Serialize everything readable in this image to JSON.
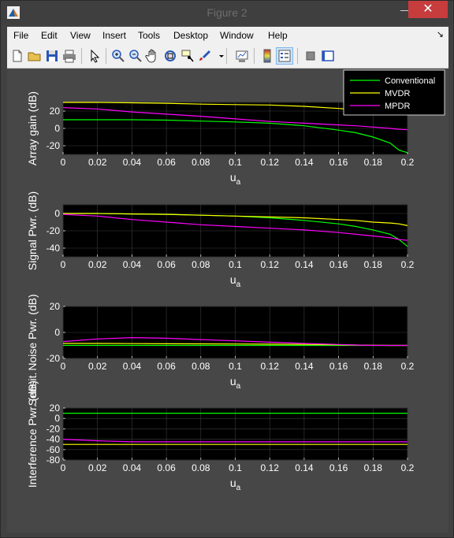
{
  "window": {
    "title": "Figure 2",
    "minimize_glyph": "—",
    "close_glyph": "✕"
  },
  "menu": [
    "File",
    "Edit",
    "View",
    "Insert",
    "Tools",
    "Desktop",
    "Window",
    "Help"
  ],
  "toolbar_icons": [
    "new-figure-icon",
    "open-file-icon",
    "save-icon",
    "print-icon",
    "pointer-icon",
    "zoom-in-icon",
    "zoom-out-icon",
    "pan-hand-icon",
    "rotate-3d-icon",
    "data-cursor-icon",
    "brush-icon",
    "link-plot-icon",
    "colorbar-icon",
    "legend-icon",
    "hide-plot-tools-icon",
    "show-plot-tools-icon"
  ],
  "colors": {
    "conventional": "#00ff00",
    "mvdr": "#ffff00",
    "mpdr": "#ff00ff",
    "axes_bg": "#000000",
    "figure_bg": "#474747",
    "text": "#ffffff"
  },
  "legend": {
    "entries": [
      "Conventional",
      "MVDR",
      "MPDR"
    ],
    "placement": "top-right"
  },
  "chart_data": [
    {
      "type": "line",
      "xlabel": "u_a",
      "ylabel": "Array gain (dB)",
      "xlim": [
        0,
        0.2
      ],
      "ylim": [
        -30,
        30
      ],
      "xticks": [
        "0",
        "0.02",
        "0.04",
        "0.06",
        "0.08",
        "0.1",
        "0.12",
        "0.14",
        "0.16",
        "0.18",
        "0.2"
      ],
      "yticks": [
        "20",
        "0",
        "-20"
      ],
      "x": [
        0,
        0.02,
        0.04,
        0.06,
        0.08,
        0.1,
        0.12,
        0.14,
        0.16,
        0.17,
        0.18,
        0.19,
        0.195,
        0.2
      ],
      "series": [
        {
          "key": "conventional",
          "values": [
            10,
            10,
            10,
            9.5,
            8.5,
            7.5,
            6,
            3,
            -2,
            -5,
            -10,
            -17,
            -25,
            -28
          ]
        },
        {
          "key": "mvdr",
          "values": [
            30,
            30,
            29.5,
            29,
            28,
            27.5,
            27,
            25.5,
            23,
            21.5,
            20,
            19,
            18,
            17
          ]
        },
        {
          "key": "mpdr",
          "values": [
            24,
            22.5,
            19,
            16.5,
            14,
            11,
            8,
            6,
            4,
            3,
            1.5,
            0,
            -1,
            -1.5
          ]
        }
      ]
    },
    {
      "type": "line",
      "xlabel": "u_a",
      "ylabel": "Signal Pwr. (dB)",
      "xlim": [
        0,
        0.2
      ],
      "ylim": [
        -50,
        10
      ],
      "xticks": [
        "0",
        "0.02",
        "0.04",
        "0.06",
        "0.08",
        "0.1",
        "0.12",
        "0.14",
        "0.16",
        "0.18",
        "0.2"
      ],
      "yticks": [
        "0",
        "-20",
        "-40"
      ],
      "x": [
        0,
        0.02,
        0.04,
        0.06,
        0.08,
        0.1,
        0.12,
        0.14,
        0.16,
        0.17,
        0.18,
        0.19,
        0.195,
        0.2
      ],
      "series": [
        {
          "key": "conventional",
          "values": [
            0,
            0,
            -0.5,
            -1,
            -2,
            -3,
            -5,
            -8,
            -12,
            -15,
            -19,
            -24,
            -30,
            -38
          ]
        },
        {
          "key": "mvdr",
          "values": [
            0,
            0,
            -0.5,
            -1,
            -2,
            -3,
            -4,
            -5,
            -7,
            -8,
            -10,
            -11,
            -12,
            -14
          ]
        },
        {
          "key": "mpdr",
          "values": [
            -1,
            -3,
            -7,
            -10,
            -13,
            -15,
            -17,
            -19,
            -22,
            -24,
            -26,
            -28,
            -30,
            -31
          ]
        }
      ]
    },
    {
      "type": "line",
      "xlabel": "u_a",
      "ylabel": "Noise Pwr. (dB)",
      "xlim": [
        0,
        0.2
      ],
      "ylim": [
        -20,
        20
      ],
      "xticks": [
        "0",
        "0.02",
        "0.04",
        "0.06",
        "0.08",
        "0.1",
        "0.12",
        "0.14",
        "0.16",
        "0.18",
        "0.2"
      ],
      "yticks": [
        "20",
        "0",
        "-20"
      ],
      "x": [
        0,
        0.02,
        0.04,
        0.06,
        0.08,
        0.1,
        0.12,
        0.14,
        0.16,
        0.17,
        0.18,
        0.19,
        0.2
      ],
      "series": [
        {
          "key": "conventional",
          "values": [
            -10,
            -10,
            -10,
            -10,
            -10,
            -10,
            -10,
            -10,
            -10,
            -10,
            -10,
            -10,
            -10
          ]
        },
        {
          "key": "mvdr",
          "values": [
            -8.5,
            -8.5,
            -8.6,
            -8.7,
            -8.8,
            -8.9,
            -9,
            -9.2,
            -9.5,
            -9.7,
            -9.9,
            -10,
            -10
          ]
        },
        {
          "key": "mpdr",
          "values": [
            -7,
            -5,
            -4,
            -4.5,
            -5.5,
            -6.5,
            -7.5,
            -8.5,
            -9.3,
            -9.7,
            -10,
            -10,
            -10
          ]
        }
      ]
    },
    {
      "type": "line",
      "xlabel": "u_a",
      "ylabel": "Interference Pwr. (dB)",
      "overlapping_label": "Sensit.",
      "xlim": [
        0,
        0.2
      ],
      "ylim": [
        -80,
        20
      ],
      "xticks": [
        "0",
        "0.02",
        "0.04",
        "0.06",
        "0.08",
        "0.1",
        "0.12",
        "0.14",
        "0.16",
        "0.18",
        "0.2"
      ],
      "yticks": [
        "20",
        "0",
        "-20",
        "-40",
        "-60",
        "-80"
      ],
      "x": [
        0,
        0.02,
        0.04,
        0.06,
        0.08,
        0.1,
        0.12,
        0.14,
        0.16,
        0.18,
        0.2
      ],
      "series": [
        {
          "key": "conventional",
          "values": [
            10,
            10,
            10,
            10,
            10,
            10,
            10,
            10,
            10,
            10,
            10
          ]
        },
        {
          "key": "mvdr",
          "values": [
            -50,
            -50,
            -50,
            -50,
            -50,
            -50,
            -50,
            -50,
            -50,
            -50,
            -50
          ]
        },
        {
          "key": "mpdr",
          "values": [
            -40,
            -43,
            -45,
            -45,
            -45,
            -45,
            -45,
            -45,
            -45,
            -45,
            -45
          ]
        }
      ]
    }
  ]
}
